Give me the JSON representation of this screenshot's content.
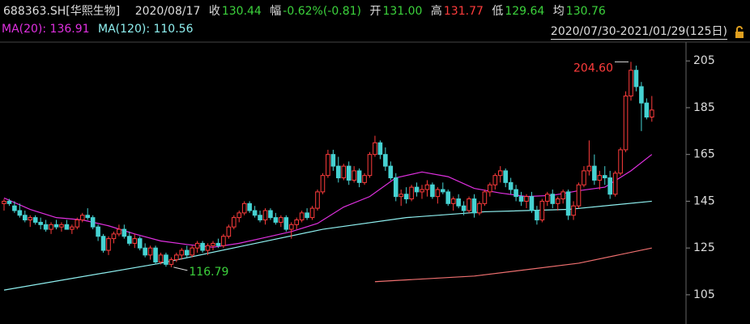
{
  "header": {
    "symbol": "688363.SH[华熙生物]",
    "date": "2020/08/17",
    "close_label": "收",
    "close": "130.44",
    "change_label": "幅",
    "change": "-0.62%(-0.81)",
    "open_label": "开",
    "open": "131.00",
    "high_label": "高",
    "high": "131.77",
    "low_label": "低",
    "low": "129.64",
    "avg_label": "均",
    "avg": "130.76",
    "ma20": "MA(20): 136.91",
    "ma120": "MA(120): 110.56",
    "range": "2020/07/30-2021/01/29(125日)"
  },
  "chart_data": {
    "type": "candlestick",
    "up_color": "#ff3c3c",
    "down_color": "#46d2d2",
    "ylim": [
      92.5,
      212
    ],
    "yticks": [
      105,
      125,
      145,
      165,
      185,
      205
    ],
    "max_label": {
      "value": 204.6,
      "label": "204.60"
    },
    "min_label": {
      "value": 116.79,
      "label": "116.79"
    },
    "candles": [
      [
        144,
        146,
        141,
        145
      ],
      [
        145,
        146,
        143,
        144
      ],
      [
        143,
        145,
        140,
        141
      ],
      [
        141,
        144,
        138,
        139
      ],
      [
        139,
        141,
        136,
        137
      ],
      [
        137,
        139,
        134,
        138
      ],
      [
        138,
        139,
        135,
        136
      ],
      [
        136,
        138,
        133,
        135
      ],
      [
        135,
        137,
        132,
        133
      ],
      [
        133,
        136,
        131,
        135
      ],
      [
        135,
        137,
        133,
        134
      ],
      [
        134,
        136,
        132,
        135
      ],
      [
        135,
        137,
        133,
        133
      ],
      [
        133,
        135,
        131,
        134
      ],
      [
        134,
        138,
        133,
        137
      ],
      [
        137,
        140,
        136,
        139
      ],
      [
        139,
        142,
        137,
        138
      ],
      [
        138,
        139,
        133,
        134
      ],
      [
        134,
        135,
        128,
        130
      ],
      [
        130,
        131,
        123,
        124
      ],
      [
        124,
        130,
        122,
        129
      ],
      [
        129,
        132,
        127,
        131
      ],
      [
        131,
        135,
        130,
        133
      ],
      [
        133,
        135,
        129,
        130
      ],
      [
        130,
        132,
        126,
        127
      ],
      [
        127,
        131,
        125,
        129
      ],
      [
        129,
        130,
        124,
        125
      ],
      [
        125,
        127,
        121,
        122
      ],
      [
        122,
        126,
        120,
        125
      ],
      [
        125,
        126,
        118,
        119
      ],
      [
        119,
        123,
        118,
        122
      ],
      [
        122,
        123,
        117,
        118
      ],
      [
        118,
        121,
        116.79,
        120
      ],
      [
        120,
        123,
        119,
        122
      ],
      [
        122,
        125,
        120,
        124
      ],
      [
        124,
        126,
        121,
        122
      ],
      [
        122,
        126,
        121,
        125
      ],
      [
        125,
        128,
        123,
        127
      ],
      [
        127,
        128,
        123,
        124
      ],
      [
        124,
        127,
        122,
        126
      ],
      [
        126,
        128,
        124,
        127
      ],
      [
        127,
        129,
        125,
        126
      ],
      [
        126,
        131,
        125,
        130
      ],
      [
        130,
        135,
        129,
        134
      ],
      [
        134,
        139,
        133,
        138
      ],
      [
        138,
        141,
        136,
        140
      ],
      [
        140,
        145,
        139,
        144
      ],
      [
        144,
        145,
        140,
        141
      ],
      [
        141,
        143,
        138,
        139
      ],
      [
        139,
        141,
        136,
        137
      ],
      [
        137,
        142,
        135,
        141
      ],
      [
        141,
        142,
        137,
        138
      ],
      [
        138,
        140,
        135,
        136
      ],
      [
        136,
        139,
        134,
        138
      ],
      [
        138,
        139,
        132,
        133
      ],
      [
        133,
        136,
        129,
        135
      ],
      [
        135,
        138,
        133,
        137
      ],
      [
        137,
        141,
        136,
        140
      ],
      [
        140,
        142,
        137,
        138
      ],
      [
        138,
        143,
        137,
        142
      ],
      [
        142,
        150,
        141,
        149
      ],
      [
        149,
        157,
        148,
        156
      ],
      [
        156,
        167,
        155,
        165
      ],
      [
        165,
        167,
        158,
        160
      ],
      [
        160,
        164,
        153,
        155
      ],
      [
        155,
        161,
        154,
        160
      ],
      [
        160,
        162,
        152,
        154
      ],
      [
        154,
        160,
        153,
        158
      ],
      [
        158,
        159,
        151,
        153
      ],
      [
        153,
        157,
        152,
        156
      ],
      [
        156,
        166,
        155,
        165
      ],
      [
        165,
        173,
        164,
        170
      ],
      [
        170,
        171,
        163,
        165
      ],
      [
        165,
        168,
        158,
        160
      ],
      [
        160,
        162,
        154,
        155
      ],
      [
        155,
        157,
        145,
        147
      ],
      [
        147,
        150,
        143,
        148
      ],
      [
        148,
        151,
        144,
        146
      ],
      [
        146,
        152,
        145,
        151
      ],
      [
        151,
        153,
        147,
        149
      ],
      [
        149,
        152,
        146,
        150
      ],
      [
        150,
        154,
        147,
        152
      ],
      [
        152,
        153,
        146,
        147
      ],
      [
        147,
        151,
        144,
        150
      ],
      [
        150,
        153,
        148,
        149
      ],
      [
        149,
        150,
        143,
        144
      ],
      [
        144,
        147,
        141,
        146
      ],
      [
        146,
        148,
        142,
        143
      ],
      [
        143,
        145,
        139,
        141
      ],
      [
        141,
        147,
        140,
        146
      ],
      [
        146,
        148,
        138,
        140
      ],
      [
        140,
        145,
        139,
        144
      ],
      [
        144,
        150,
        143,
        149
      ],
      [
        149,
        153,
        147,
        152
      ],
      [
        152,
        157,
        150,
        156
      ],
      [
        156,
        160,
        153,
        158
      ],
      [
        158,
        159,
        151,
        153
      ],
      [
        153,
        155,
        148,
        150
      ],
      [
        150,
        152,
        145,
        147
      ],
      [
        147,
        149,
        143,
        145
      ],
      [
        145,
        148,
        142,
        147
      ],
      [
        147,
        149,
        140,
        141
      ],
      [
        141,
        143,
        135,
        137
      ],
      [
        137,
        146,
        136,
        145
      ],
      [
        145,
        149,
        143,
        148
      ],
      [
        148,
        150,
        142,
        144
      ],
      [
        144,
        147,
        141,
        146
      ],
      [
        146,
        150,
        144,
        149
      ],
      [
        149,
        150,
        137,
        139
      ],
      [
        139,
        145,
        137,
        143
      ],
      [
        143,
        153,
        142,
        152
      ],
      [
        152,
        160,
        151,
        158
      ],
      [
        158,
        171,
        156,
        160
      ],
      [
        160,
        165,
        152,
        154
      ],
      [
        154,
        158,
        150,
        156
      ],
      [
        156,
        160,
        152,
        155
      ],
      [
        155,
        158,
        146,
        148
      ],
      [
        148,
        158,
        147,
        157
      ],
      [
        157,
        168,
        156,
        167
      ],
      [
        167,
        192,
        166,
        190
      ],
      [
        190,
        204.6,
        188,
        201
      ],
      [
        201,
        203,
        192,
        194
      ],
      [
        194,
        196,
        175,
        187
      ],
      [
        187,
        189,
        180,
        181
      ],
      [
        181,
        190,
        179,
        184
      ]
    ],
    "series": [
      {
        "color": "#e030e0",
        "x": [
          0,
          5,
          10,
          15,
          20,
          25,
          30,
          35,
          40,
          45,
          50,
          55,
          60,
          65,
          70,
          75,
          80,
          85,
          90,
          95,
          100,
          105,
          110,
          115,
          120,
          124
        ],
        "values": [
          146.4,
          141.5,
          138,
          137,
          134.5,
          131,
          128,
          126.5,
          125.3,
          127,
          129.5,
          132,
          135.5,
          142.5,
          147,
          155,
          157.5,
          155.5,
          150.5,
          148.5,
          147,
          147.5,
          149.5,
          151,
          158,
          165
        ]
      },
      {
        "color": "#8ff0f0",
        "x": [
          0,
          30,
          46,
          61,
          77,
          92,
          108,
          124
        ],
        "values": [
          107,
          118.5,
          126,
          133,
          138,
          140.5,
          141.5,
          145
        ]
      },
      {
        "color": "#f07070",
        "x": [
          71,
          90,
          110,
          124
        ],
        "values": [
          110.6,
          113,
          118.5,
          125
        ]
      }
    ]
  }
}
